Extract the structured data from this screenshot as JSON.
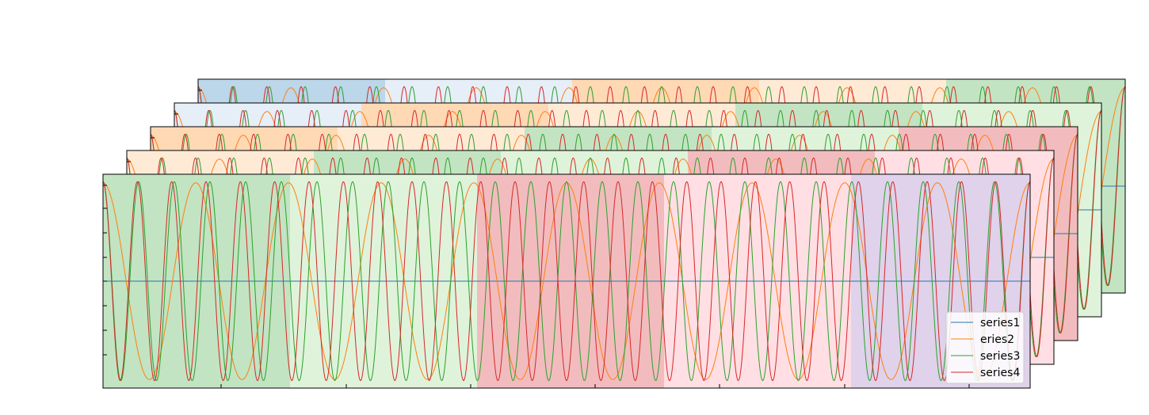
{
  "chart_data": {
    "type": "line",
    "title": "",
    "xlabel": "",
    "ylabel": "",
    "panel_count": 5,
    "band_colors": [
      "#bcd6ea",
      "#e6eef8",
      "#ffd8b4",
      "#ffead6",
      "#c2e4c2",
      "#dff3da",
      "#f2bcbe",
      "#ffdfe3",
      "#dfd2ea"
    ],
    "panels": [
      {
        "panel": 5,
        "band_start": 0
      },
      {
        "panel": 4,
        "band_start": 1
      },
      {
        "panel": 3,
        "band_start": 2
      },
      {
        "panel": 2,
        "band_start": 3
      },
      {
        "panel": 1,
        "band_start": 4
      }
    ],
    "xlim": [
      0,
      1
    ],
    "ylim": [
      -1,
      1
    ],
    "series": [
      {
        "name": "series1",
        "color": "#1f77b4",
        "cycles": 0,
        "amplitude": 0
      },
      {
        "name": "eries2",
        "color": "#ff7f0e",
        "cycles": 10,
        "amplitude": 0.92
      },
      {
        "name": "series3",
        "color": "#2ca02c",
        "cycles": 26,
        "amplitude": 0.93
      },
      {
        "name": "series4",
        "color": "#d62728",
        "cycles": 27,
        "amplitude": 0.93
      }
    ],
    "legend": {
      "position": "lower-right"
    },
    "grid": false
  }
}
